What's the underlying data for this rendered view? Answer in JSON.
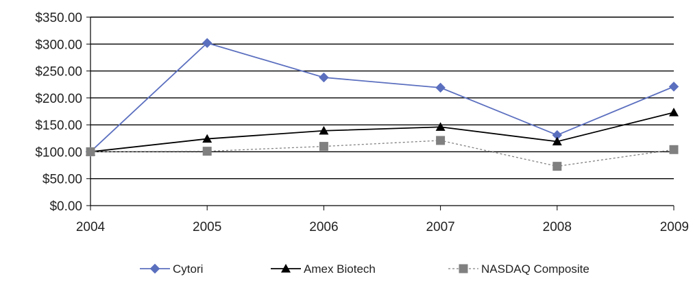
{
  "chart_data": {
    "type": "line",
    "title": "",
    "xlabel": "",
    "ylabel": "",
    "categories": [
      "2004",
      "2005",
      "2006",
      "2007",
      "2008",
      "2009"
    ],
    "ylim": [
      0,
      350
    ],
    "yticks": [
      0,
      50,
      100,
      150,
      200,
      250,
      300,
      350
    ],
    "ytick_labels": [
      "$0.00",
      "$50.00",
      "$100.00",
      "$150.00",
      "$200.00",
      "$250.00",
      "$300.00",
      "$350.00"
    ],
    "grid": "horizontal",
    "legend_position": "bottom",
    "series": [
      {
        "name": "Cytori",
        "values": [
          100,
          302,
          238,
          219,
          131,
          221
        ],
        "color": "#5b6fbf",
        "line": "solid",
        "marker": "diamond"
      },
      {
        "name": "Amex Biotech",
        "values": [
          100,
          124,
          139,
          146,
          119,
          173
        ],
        "color": "#000000",
        "line": "solid",
        "marker": "triangle"
      },
      {
        "name": "NASDAQ Composite",
        "values": [
          100,
          101,
          110,
          121,
          73,
          104
        ],
        "color": "#808080",
        "line": "dotted",
        "marker": "square"
      }
    ]
  }
}
